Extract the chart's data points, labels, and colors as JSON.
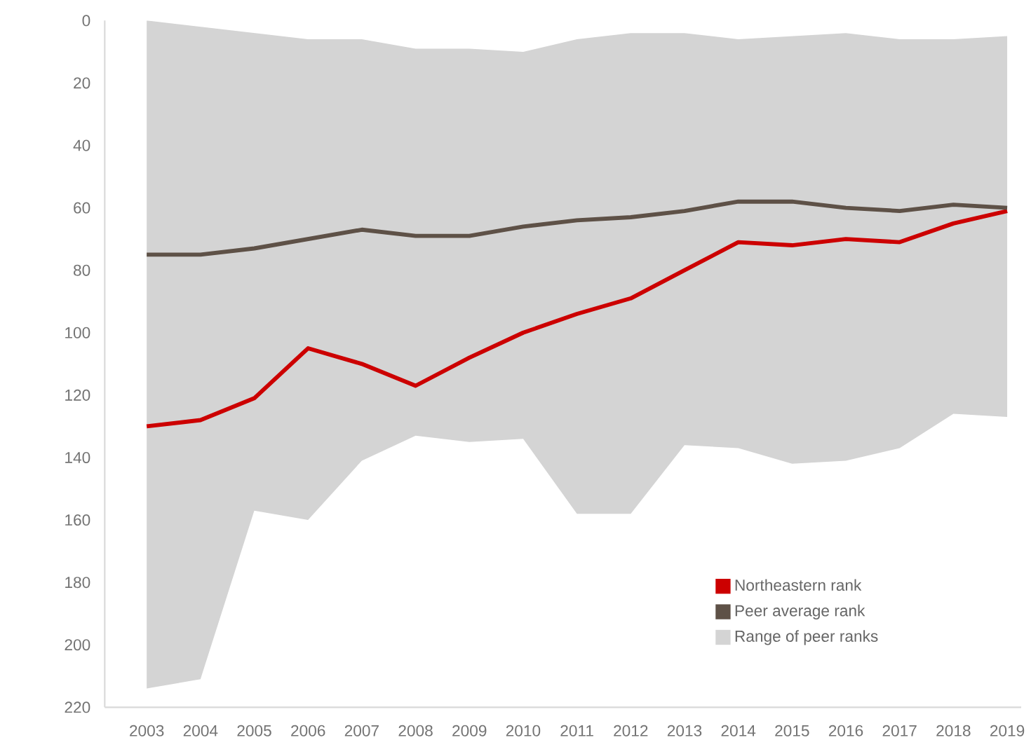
{
  "chart_data": {
    "type": "line",
    "categories": [
      "2003",
      "2004",
      "2005",
      "2006",
      "2007",
      "2008",
      "2009",
      "2010",
      "2011",
      "2012",
      "2013",
      "2014",
      "2015",
      "2016",
      "2017",
      "2018",
      "2019"
    ],
    "series": [
      {
        "name": "Northeastern rank",
        "color": "#cc0000",
        "values": [
          130,
          128,
          121,
          105,
          110,
          117,
          108,
          100,
          94,
          89,
          80,
          71,
          72,
          70,
          71,
          65,
          61
        ]
      },
      {
        "name": "Peer average rank",
        "color": "#5e5147",
        "values": [
          75,
          75,
          73,
          70,
          67,
          69,
          69,
          66,
          64,
          63,
          61,
          58,
          58,
          60,
          61,
          59,
          60
        ]
      },
      {
        "name": "Range of peer ranks",
        "color": "#d4d4d4",
        "values": [
          null,
          null,
          null,
          null,
          null,
          null,
          null,
          null,
          null,
          null,
          null,
          null,
          null,
          null,
          null,
          null,
          null
        ],
        "lower": [
          214,
          211,
          157,
          160,
          141,
          133,
          135,
          134,
          158,
          158,
          136,
          137,
          142,
          141,
          137,
          126,
          127
        ],
        "upper": [
          0,
          2,
          4,
          6,
          6,
          9,
          9,
          10,
          6,
          4,
          4,
          6,
          5,
          4,
          6,
          6,
          5
        ]
      }
    ],
    "ylim": [
      220,
      0
    ],
    "yticks": [
      0,
      20,
      40,
      60,
      80,
      100,
      120,
      140,
      160,
      180,
      200,
      220
    ],
    "grid": false,
    "legend": "bottom right"
  }
}
